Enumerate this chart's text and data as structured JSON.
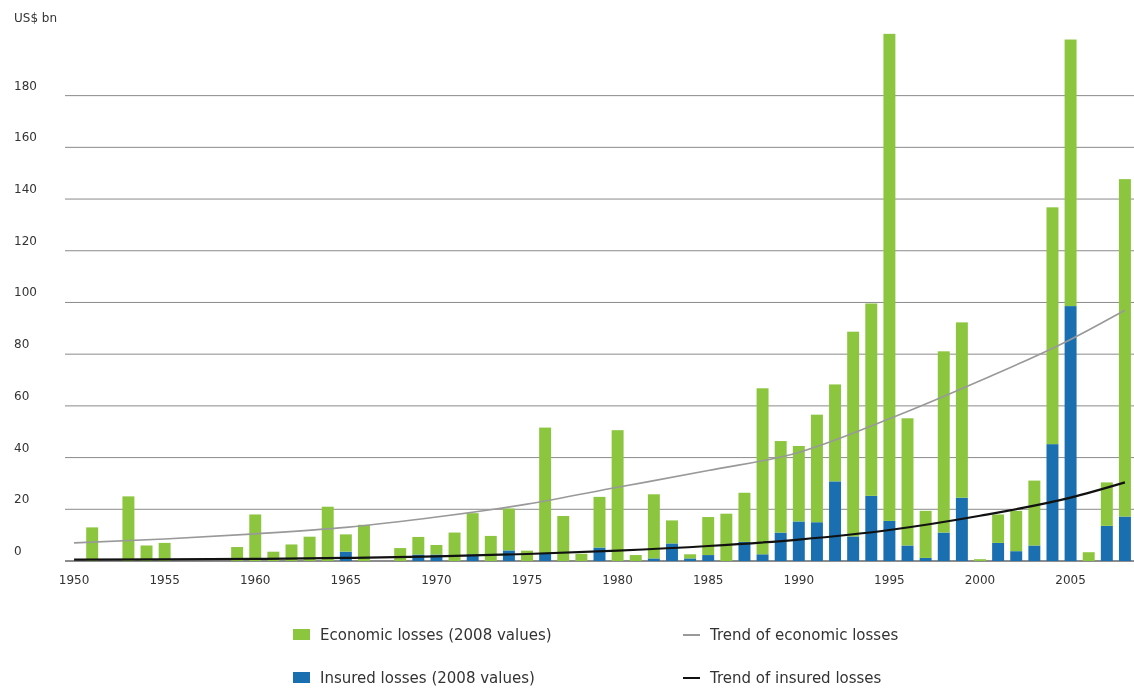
{
  "chart_data": {
    "type": "bar",
    "ylabel": "US$ bn",
    "stacked": true,
    "grid": "y",
    "legend": "bottom",
    "x": [
      1950,
      1951,
      1952,
      1953,
      1954,
      1955,
      1956,
      1957,
      1958,
      1959,
      1960,
      1961,
      1962,
      1963,
      1964,
      1965,
      1966,
      1967,
      1968,
      1969,
      1970,
      1971,
      1972,
      1973,
      1974,
      1975,
      1976,
      1977,
      1978,
      1979,
      1980,
      1981,
      1982,
      1983,
      1984,
      1985,
      1986,
      1987,
      1988,
      1989,
      1990,
      1991,
      1992,
      1993,
      1994,
      1995,
      1996,
      1997,
      1998,
      1999,
      2000,
      2001,
      2002,
      2003,
      2004,
      2005,
      2006,
      2007,
      2008
    ],
    "xlim": [
      1949.5,
      2008.5
    ],
    "xticks": [
      1950,
      1955,
      1960,
      1965,
      1970,
      1975,
      1980,
      1985,
      1990,
      1995,
      2000,
      2005
    ],
    "ylim": [
      0,
      205
    ],
    "yticks": [
      0,
      20,
      40,
      60,
      80,
      100,
      120,
      140,
      160,
      180
    ],
    "series": [
      {
        "name": "Insured losses (2008 values)",
        "color": "#1a6fb0",
        "values": [
          0,
          0,
          0,
          0,
          0,
          0,
          0,
          0,
          0,
          0,
          0,
          0,
          0,
          0,
          0,
          3.6,
          0,
          0,
          0,
          2.5,
          2.5,
          0,
          2.6,
          0,
          4.1,
          0,
          2.8,
          0,
          0,
          5.2,
          0,
          0,
          1,
          6.8,
          1,
          2.3,
          0,
          7.4,
          2.6,
          11,
          15.3,
          15,
          30.8,
          9.5,
          25.2,
          15.5,
          6,
          1.2,
          11,
          24.5,
          0,
          7,
          3.8,
          6,
          45.2,
          98.6,
          0,
          13.6,
          17.2
        ]
      },
      {
        "name": "Economic losses (2008 values)",
        "color": "#8cc63f",
        "values": [
          0,
          13,
          0,
          25,
          6,
          7,
          0,
          0,
          0,
          5.4,
          18,
          3.6,
          6.4,
          9.4,
          21,
          6.7,
          14,
          0,
          5,
          6.8,
          3.7,
          11,
          15.9,
          9.7,
          16.2,
          4,
          48.8,
          17.4,
          2.8,
          19.6,
          50.6,
          2.3,
          24.8,
          8.9,
          1.6,
          14.7,
          18.3,
          19,
          64.2,
          35.4,
          29.2,
          41.6,
          37.5,
          79.2,
          74.4,
          188.4,
          49.2,
          18.2,
          70.1,
          67.8,
          0.7,
          11,
          15.6,
          25.1,
          91.6,
          103.1,
          3.4,
          16.8,
          130.5
        ]
      },
      {
        "name": "Trend of economic losses",
        "type": "line",
        "color": "#999999",
        "x": [
          1950,
          1955,
          1960,
          1965,
          1970,
          1975,
          1980,
          1985,
          1990,
          1995,
          2000,
          2005,
          2008
        ],
        "values": [
          7,
          8.5,
          10.5,
          13,
          17,
          22,
          28.5,
          35,
          42,
          55,
          69.7,
          85.7,
          97
        ]
      },
      {
        "name": "Trend of insured losses",
        "type": "line",
        "color": "#111111",
        "x": [
          1950,
          1955,
          1960,
          1965,
          1970,
          1975,
          1980,
          1985,
          1990,
          1995,
          2000,
          2005,
          2008
        ],
        "values": [
          0.5,
          0.6,
          0.8,
          1.2,
          1.8,
          2.7,
          4,
          5.8,
          8.3,
          12,
          17.5,
          24.5,
          30.4
        ]
      }
    ]
  }
}
